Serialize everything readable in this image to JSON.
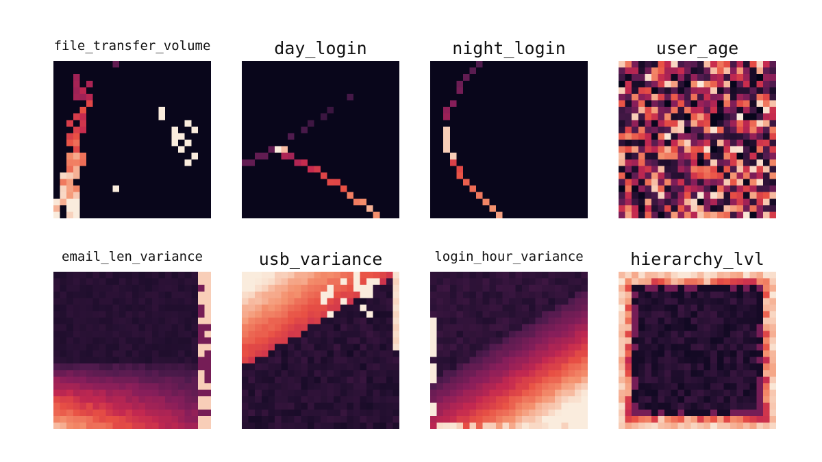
{
  "chart_data": [
    {
      "type": "heatmap",
      "title": "file_transfer_volume",
      "pattern": "curve-left",
      "colormap": "rocket",
      "value_range": [
        0,
        1
      ]
    },
    {
      "type": "heatmap",
      "title": "day_login",
      "pattern": "chevron",
      "colormap": "rocket",
      "value_range": [
        0,
        1
      ]
    },
    {
      "type": "heatmap",
      "title": "night_login",
      "pattern": "arc",
      "colormap": "rocket",
      "value_range": [
        0,
        1
      ]
    },
    {
      "type": "heatmap",
      "title": "user_age",
      "pattern": "random",
      "colormap": "rocket",
      "value_range": [
        0,
        1
      ]
    },
    {
      "type": "heatmap",
      "title": "email_len_variance",
      "pattern": "bottom-gradient",
      "colormap": "rocket",
      "value_range": [
        0,
        1
      ]
    },
    {
      "type": "heatmap",
      "title": "usb_variance",
      "pattern": "top-left-gradient",
      "colormap": "rocket",
      "value_range": [
        0,
        1
      ]
    },
    {
      "type": "heatmap",
      "title": "login_hour_variance",
      "pattern": "bottom-right-gradient",
      "colormap": "rocket",
      "value_range": [
        0,
        1
      ]
    },
    {
      "type": "heatmap",
      "title": "hierarchy_lvl",
      "pattern": "border",
      "colormap": "rocket",
      "value_range": [
        0,
        1
      ]
    }
  ]
}
